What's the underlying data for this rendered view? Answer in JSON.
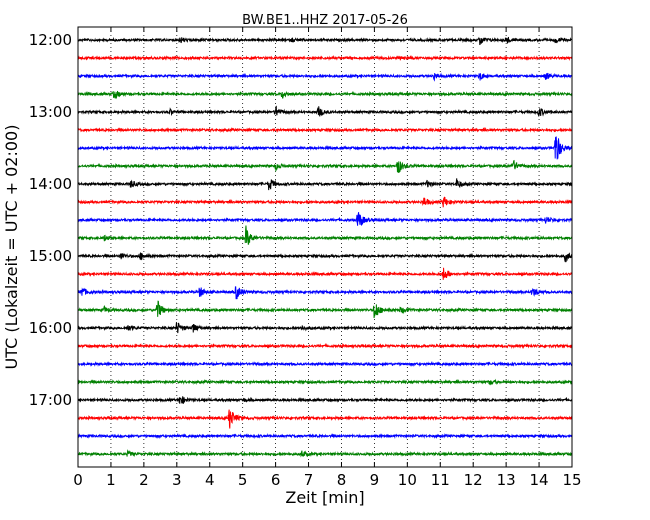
{
  "chart_data": {
    "type": "line",
    "title": "BW.BE1..HHZ 2017-05-26",
    "xlabel": "Zeit  [min]",
    "ylabel": "UTC (Lokalzeit = UTC + 02:00)",
    "xlim": [
      0,
      15
    ],
    "x_ticks": [
      "0",
      "1",
      "2",
      "3",
      "4",
      "5",
      "6",
      "7",
      "8",
      "9",
      "10",
      "11",
      "12",
      "13",
      "14",
      "15"
    ],
    "y_ticks": [
      {
        "label": "12:00",
        "row": 0
      },
      {
        "label": "13:00",
        "row": 4
      },
      {
        "label": "14:00",
        "row": 8
      },
      {
        "label": "15:00",
        "row": 12
      },
      {
        "label": "16:00",
        "row": 16
      },
      {
        "label": "17:00",
        "row": 20
      }
    ],
    "grid": "vertical dotted",
    "colors": [
      "#000000",
      "#ff0000",
      "#0000ff",
      "#008000"
    ],
    "trace_start_hour": "12:00",
    "trace_interval_minutes": 15,
    "traces": [
      {
        "start": "12:00",
        "color": "#000000",
        "events": [
          {
            "t": 3.1,
            "amp": 0.5
          },
          {
            "t": 6.5,
            "amp": 0.3
          },
          {
            "t": 12.2,
            "amp": 0.9
          },
          {
            "t": 13.0,
            "amp": 0.6
          },
          {
            "t": 14.5,
            "amp": 0.5
          }
        ]
      },
      {
        "start": "12:15",
        "color": "#ff0000",
        "events": [
          {
            "t": 9.8,
            "amp": 0.3
          }
        ]
      },
      {
        "start": "12:30",
        "color": "#0000ff",
        "events": [
          {
            "t": 10.8,
            "amp": 0.6
          },
          {
            "t": 12.2,
            "amp": 0.7
          },
          {
            "t": 14.2,
            "amp": 0.6
          }
        ]
      },
      {
        "start": "12:45",
        "color": "#008000",
        "events": [
          {
            "t": 1.1,
            "amp": 0.8
          },
          {
            "t": 6.2,
            "amp": 0.7
          }
        ]
      },
      {
        "start": "13:00",
        "color": "#000000",
        "events": [
          {
            "t": 2.8,
            "amp": 0.4
          },
          {
            "t": 6.0,
            "amp": 0.9
          },
          {
            "t": 7.3,
            "amp": 0.9
          },
          {
            "t": 14.0,
            "amp": 0.8
          }
        ]
      },
      {
        "start": "13:15",
        "color": "#ff0000",
        "events": []
      },
      {
        "start": "13:30",
        "color": "#0000ff",
        "events": [
          {
            "t": 14.5,
            "amp": 3.2
          }
        ]
      },
      {
        "start": "13:45",
        "color": "#008000",
        "events": [
          {
            "t": 6.0,
            "amp": 0.6
          },
          {
            "t": 9.7,
            "amp": 1.5
          },
          {
            "t": 13.2,
            "amp": 1.0
          }
        ]
      },
      {
        "start": "14:00",
        "color": "#000000",
        "events": [
          {
            "t": 1.6,
            "amp": 0.6
          },
          {
            "t": 5.8,
            "amp": 1.2
          },
          {
            "t": 10.6,
            "amp": 0.5
          },
          {
            "t": 11.5,
            "amp": 0.8
          }
        ]
      },
      {
        "start": "14:15",
        "color": "#ff0000",
        "events": [
          {
            "t": 10.5,
            "amp": 0.8
          },
          {
            "t": 11.1,
            "amp": 1.0
          }
        ]
      },
      {
        "start": "14:30",
        "color": "#0000ff",
        "events": [
          {
            "t": 8.5,
            "amp": 1.8
          },
          {
            "t": 14.2,
            "amp": 0.6
          }
        ]
      },
      {
        "start": "14:45",
        "color": "#008000",
        "events": [
          {
            "t": 0.8,
            "amp": 0.4
          },
          {
            "t": 5.1,
            "amp": 1.9
          }
        ]
      },
      {
        "start": "15:00",
        "color": "#000000",
        "events": [
          {
            "t": 1.3,
            "amp": 0.5
          },
          {
            "t": 1.9,
            "amp": 0.6
          },
          {
            "t": 14.8,
            "amp": 0.9
          }
        ]
      },
      {
        "start": "15:15",
        "color": "#ff0000",
        "events": [
          {
            "t": 11.1,
            "amp": 1.2
          }
        ]
      },
      {
        "start": "15:30",
        "color": "#0000ff",
        "events": [
          {
            "t": 0.1,
            "amp": 0.9
          },
          {
            "t": 3.7,
            "amp": 0.9
          },
          {
            "t": 4.8,
            "amp": 1.3
          },
          {
            "t": 13.8,
            "amp": 0.8
          }
        ]
      },
      {
        "start": "15:45",
        "color": "#008000",
        "events": [
          {
            "t": 0.8,
            "amp": 0.5
          },
          {
            "t": 2.4,
            "amp": 1.8
          },
          {
            "t": 9.0,
            "amp": 1.8
          },
          {
            "t": 9.8,
            "amp": 0.5
          }
        ]
      },
      {
        "start": "16:00",
        "color": "#000000",
        "events": [
          {
            "t": 1.5,
            "amp": 0.5
          },
          {
            "t": 3.0,
            "amp": 1.1
          },
          {
            "t": 3.5,
            "amp": 0.8
          },
          {
            "t": 6.8,
            "amp": 0.4
          }
        ]
      },
      {
        "start": "16:15",
        "color": "#ff0000",
        "events": []
      },
      {
        "start": "16:30",
        "color": "#0000ff",
        "events": []
      },
      {
        "start": "16:45",
        "color": "#008000",
        "events": [
          {
            "t": 12.5,
            "amp": 0.4
          }
        ]
      },
      {
        "start": "17:00",
        "color": "#000000",
        "events": [
          {
            "t": 3.1,
            "amp": 0.9
          },
          {
            "t": 5.0,
            "amp": 0.3
          }
        ]
      },
      {
        "start": "17:15",
        "color": "#ff0000",
        "events": [
          {
            "t": 4.6,
            "amp": 2.0
          }
        ]
      },
      {
        "start": "17:30",
        "color": "#0000ff",
        "events": []
      },
      {
        "start": "17:45",
        "color": "#008000",
        "events": [
          {
            "t": 1.5,
            "amp": 0.4
          },
          {
            "t": 6.8,
            "amp": 0.5
          }
        ]
      }
    ]
  }
}
